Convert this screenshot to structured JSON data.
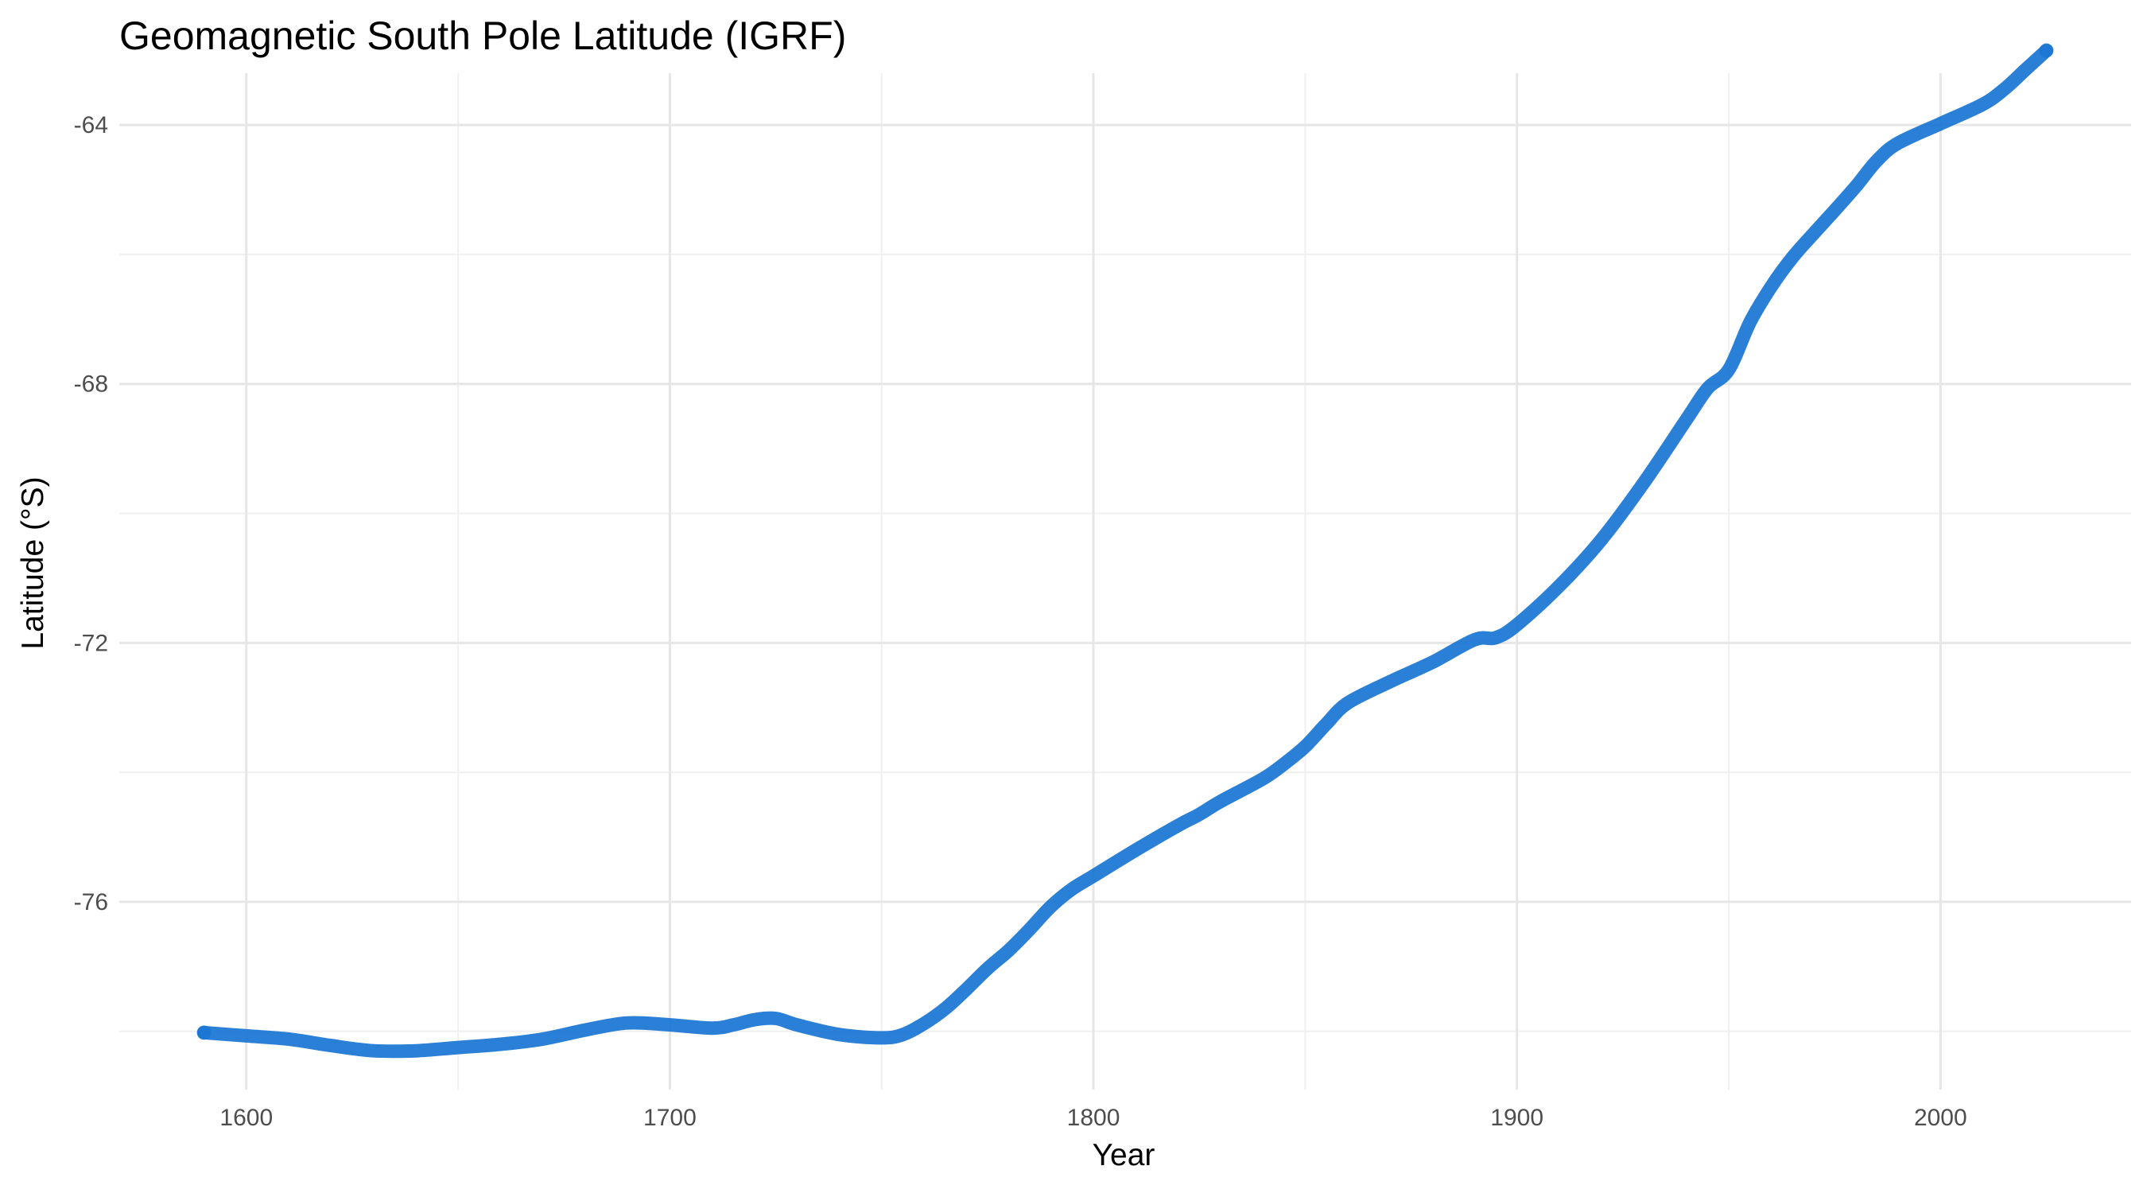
{
  "chart_data": {
    "type": "line",
    "title": "Geomagnetic South Pole Latitude (IGRF)",
    "xlabel": "Year",
    "ylabel": "Latitude (°S)",
    "xlim": [
      1570,
      2045
    ],
    "ylim": [
      -78.9,
      -63.2
    ],
    "x_ticks": [
      1600,
      1700,
      1800,
      1900,
      2000
    ],
    "x_tick_labels": [
      "1600",
      "1700",
      "1800",
      "1900",
      "2000"
    ],
    "x_minor_ticks": [
      1650,
      1750,
      1850,
      1950
    ],
    "y_ticks": [
      -76,
      -72,
      -68,
      -64
    ],
    "y_tick_labels": [
      "-76",
      "-72",
      "-68",
      "-64"
    ],
    "y_minor_ticks": [
      -78,
      -74,
      -70,
      -66
    ],
    "grid": true,
    "legend": "none",
    "colors": {
      "line": "#1874d3",
      "grid_major": "#e6e6e6",
      "grid_minor": "#f0f0f0"
    },
    "series": [
      {
        "x": [
          1590,
          1600,
          1610,
          1620,
          1630,
          1640,
          1650,
          1660,
          1670,
          1680,
          1690,
          1700,
          1710,
          1715,
          1720,
          1725,
          1730,
          1740,
          1750,
          1755,
          1760,
          1765,
          1770,
          1775,
          1780,
          1785,
          1790,
          1795,
          1800,
          1810,
          1820,
          1825,
          1830,
          1840,
          1845,
          1850,
          1855,
          1860,
          1870,
          1880,
          1890,
          1895,
          1900,
          1910,
          1920,
          1930,
          1940,
          1945,
          1950,
          1955,
          1960,
          1965,
          1970,
          1975,
          1980,
          1985,
          1990,
          2000,
          2010,
          2015,
          2020,
          2025
        ],
        "y": [
          -78.02,
          -78.07,
          -78.12,
          -78.22,
          -78.3,
          -78.3,
          -78.25,
          -78.2,
          -78.12,
          -77.98,
          -77.87,
          -77.9,
          -77.95,
          -77.9,
          -77.82,
          -77.8,
          -77.9,
          -78.05,
          -78.1,
          -78.05,
          -77.88,
          -77.65,
          -77.35,
          -77.03,
          -76.75,
          -76.42,
          -76.07,
          -75.8,
          -75.6,
          -75.2,
          -74.82,
          -74.65,
          -74.45,
          -74.1,
          -73.87,
          -73.6,
          -73.25,
          -72.93,
          -72.6,
          -72.3,
          -71.95,
          -71.92,
          -71.72,
          -71.12,
          -70.4,
          -69.52,
          -68.55,
          -68.07,
          -67.78,
          -67.05,
          -66.5,
          -66.05,
          -65.68,
          -65.32,
          -64.95,
          -64.55,
          -64.28,
          -63.98,
          -63.68,
          -63.45,
          -63.15,
          -62.85
        ]
      }
    ]
  }
}
